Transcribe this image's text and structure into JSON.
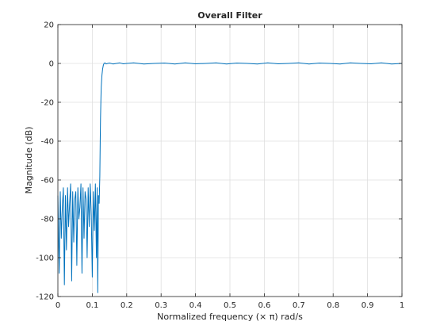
{
  "chart_data": {
    "type": "line",
    "title": "Overall Filter",
    "xlabel": "Normalized frequency (× π) rad/s",
    "ylabel": "Magnitude (dB)",
    "xlim": [
      0,
      1
    ],
    "ylim": [
      -120,
      20
    ],
    "xticks": [
      0,
      0.1,
      0.2,
      0.3,
      0.4,
      0.5,
      0.6,
      0.7,
      0.8,
      0.9,
      1
    ],
    "xtick_labels": [
      "0",
      "0.1",
      "0.2",
      "0.3",
      "0.4",
      "0.5",
      "0.6",
      "0.7",
      "0.8",
      "0.9",
      "1"
    ],
    "yticks": [
      20,
      0,
      -20,
      -40,
      -60,
      -80,
      -100,
      -120
    ],
    "ytick_labels": [
      "20",
      "0",
      "-20",
      "-40",
      "-60",
      "-80",
      "-100",
      "-120"
    ],
    "grid": true,
    "line_color": "#0072BD",
    "series": [
      {
        "x": [
          0,
          0.004,
          0.007,
          0.01,
          0.013,
          0.016,
          0.019,
          0.022,
          0.025,
          0.028,
          0.031,
          0.034,
          0.037,
          0.04,
          0.043,
          0.046,
          0.049,
          0.052,
          0.055,
          0.058,
          0.061,
          0.064,
          0.067,
          0.07,
          0.073,
          0.076,
          0.079,
          0.082,
          0.085,
          0.088,
          0.091,
          0.094,
          0.097,
          0.1,
          0.103,
          0.106,
          0.109,
          0.112,
          0.114,
          0.116,
          0.118,
          0.12,
          0.122,
          0.123,
          0.124,
          0.125,
          0.126,
          0.128,
          0.13,
          0.132,
          0.134,
          0.137,
          0.14,
          0.145,
          0.15,
          0.16,
          0.17,
          0.18,
          0.19,
          0.2,
          0.22,
          0.25,
          0.28,
          0.31,
          0.34,
          0.37,
          0.4,
          0.43,
          0.46,
          0.49,
          0.52,
          0.55,
          0.58,
          0.61,
          0.64,
          0.67,
          0.7,
          0.73,
          0.76,
          0.79,
          0.82,
          0.85,
          0.88,
          0.91,
          0.94,
          0.97,
          1.0
        ],
        "y": [
          -68,
          -108,
          -66,
          -90,
          -74,
          -64,
          -114,
          -68,
          -96,
          -64,
          -84,
          -72,
          -62,
          -112,
          -66,
          -92,
          -70,
          -66,
          -104,
          -64,
          -80,
          -74,
          -62,
          -108,
          -64,
          -90,
          -66,
          -70,
          -100,
          -64,
          -84,
          -62,
          -78,
          -110,
          -66,
          -86,
          -62,
          -100,
          -64,
          -118,
          -68,
          -72,
          -58,
          -40,
          -28,
          -18,
          -12,
          -6,
          -3,
          -1,
          0,
          0.3,
          -0.3,
          0,
          0.2,
          -0.3,
          0,
          0.3,
          -0.2,
          0,
          0.3,
          -0.3,
          0,
          0.2,
          -0.3,
          0.3,
          -0.2,
          0,
          0.3,
          -0.3,
          0.2,
          0,
          -0.3,
          0.3,
          -0.2,
          0,
          0.3,
          -0.3,
          0.2,
          0,
          -0.3,
          0.3,
          0,
          -0.2,
          0.3,
          -0.3,
          0
        ]
      }
    ]
  }
}
